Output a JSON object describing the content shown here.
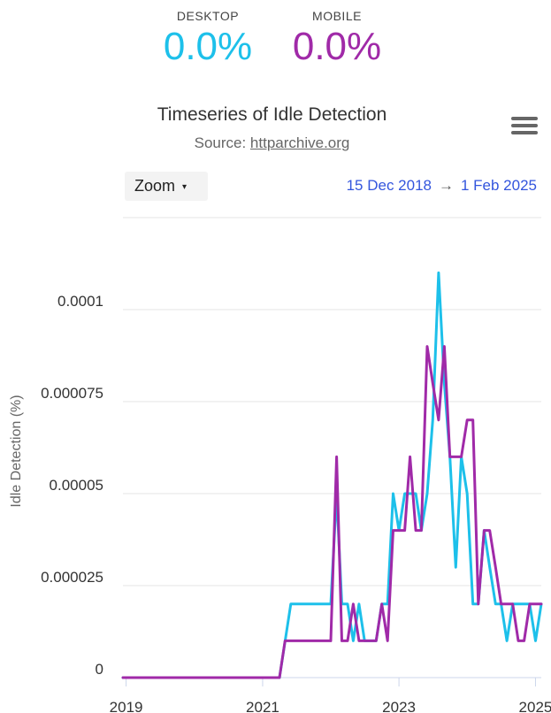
{
  "summary": {
    "desktop": {
      "label": "DESKTOP",
      "value": "0.0%",
      "color": "#1dc0ea"
    },
    "mobile": {
      "label": "MOBILE",
      "value": "0.0%",
      "color": "#a02aa8"
    }
  },
  "header": {
    "title": "Timeseries of Idle Detection",
    "source_prefix": "Source: ",
    "source_link": "httparchive.org",
    "menu_icon": "hamburger-menu-icon"
  },
  "controls": {
    "zoom_label": "Zoom",
    "zoom_caret": "▾",
    "range_start": "15 Dec 2018",
    "range_arrow": "→",
    "range_end": "1 Feb 2025"
  },
  "chart_data": {
    "type": "line",
    "title": "Timeseries of Idle Detection",
    "subtitle": "Source: httparchive.org",
    "ylabel": "Idle Detection (%)",
    "xlabel": "",
    "xlim": [
      "2018-12-15",
      "2025-02-01"
    ],
    "ylim": [
      0,
      0.0001
    ],
    "y_ticks": [
      0,
      2.5e-05,
      5e-05,
      7.5e-05,
      0.0001
    ],
    "y_tick_labels": [
      "0",
      "0.000025",
      "0.00005",
      "0.000075",
      "0.0001"
    ],
    "x_ticks": [
      "2019-01-01",
      "2021-01-01",
      "2023-01-01",
      "2025-01-01"
    ],
    "x_tick_labels": [
      "2019",
      "2021",
      "2023",
      "2025"
    ],
    "grid": true,
    "legend": "none",
    "series": [
      {
        "name": "Desktop",
        "color": "#1dc0ea",
        "points": [
          [
            "2018-12-15",
            0
          ],
          [
            "2021-04-01",
            0
          ],
          [
            "2021-06-01",
            2e-05
          ],
          [
            "2021-07-01",
            2e-05
          ],
          [
            "2022-01-01",
            2e-05
          ],
          [
            "2022-02-01",
            5e-05
          ],
          [
            "2022-03-01",
            2e-05
          ],
          [
            "2022-04-01",
            2e-05
          ],
          [
            "2022-05-01",
            1e-05
          ],
          [
            "2022-06-01",
            2e-05
          ],
          [
            "2022-07-01",
            1e-05
          ],
          [
            "2022-08-01",
            1e-05
          ],
          [
            "2022-09-01",
            1e-05
          ],
          [
            "2022-10-01",
            2e-05
          ],
          [
            "2022-11-01",
            2e-05
          ],
          [
            "2022-12-01",
            5e-05
          ],
          [
            "2023-01-01",
            4e-05
          ],
          [
            "2023-02-01",
            5e-05
          ],
          [
            "2023-03-01",
            5e-05
          ],
          [
            "2023-04-01",
            5e-05
          ],
          [
            "2023-05-01",
            4e-05
          ],
          [
            "2023-06-01",
            5e-05
          ],
          [
            "2023-07-01",
            7e-05
          ],
          [
            "2023-08-01",
            0.00011
          ],
          [
            "2023-09-01",
            8e-05
          ],
          [
            "2023-10-01",
            6e-05
          ],
          [
            "2023-11-01",
            3e-05
          ],
          [
            "2023-12-01",
            6e-05
          ],
          [
            "2024-01-01",
            5e-05
          ],
          [
            "2024-02-01",
            2e-05
          ],
          [
            "2024-03-01",
            2e-05
          ],
          [
            "2024-04-01",
            4e-05
          ],
          [
            "2024-05-01",
            3e-05
          ],
          [
            "2024-06-01",
            2e-05
          ],
          [
            "2024-07-01",
            2e-05
          ],
          [
            "2024-08-01",
            1e-05
          ],
          [
            "2024-09-01",
            2e-05
          ],
          [
            "2024-10-01",
            2e-05
          ],
          [
            "2024-11-01",
            2e-05
          ],
          [
            "2024-12-01",
            2e-05
          ],
          [
            "2025-01-01",
            1e-05
          ],
          [
            "2025-02-01",
            2e-05
          ]
        ]
      },
      {
        "name": "Mobile",
        "color": "#a02aa8",
        "points": [
          [
            "2018-12-15",
            0
          ],
          [
            "2021-04-01",
            0
          ],
          [
            "2021-05-01",
            1e-05
          ],
          [
            "2021-07-01",
            1e-05
          ],
          [
            "2022-01-01",
            1e-05
          ],
          [
            "2022-02-01",
            6e-05
          ],
          [
            "2022-03-01",
            1e-05
          ],
          [
            "2022-04-01",
            1e-05
          ],
          [
            "2022-05-01",
            2e-05
          ],
          [
            "2022-06-01",
            1e-05
          ],
          [
            "2022-07-01",
            1e-05
          ],
          [
            "2022-08-01",
            1e-05
          ],
          [
            "2022-09-01",
            1e-05
          ],
          [
            "2022-10-01",
            2e-05
          ],
          [
            "2022-11-01",
            1e-05
          ],
          [
            "2022-12-01",
            4e-05
          ],
          [
            "2023-01-01",
            4e-05
          ],
          [
            "2023-02-01",
            4e-05
          ],
          [
            "2023-03-01",
            6e-05
          ],
          [
            "2023-04-01",
            4e-05
          ],
          [
            "2023-05-01",
            4e-05
          ],
          [
            "2023-06-01",
            9e-05
          ],
          [
            "2023-07-01",
            8e-05
          ],
          [
            "2023-08-01",
            7e-05
          ],
          [
            "2023-09-01",
            9e-05
          ],
          [
            "2023-10-01",
            6e-05
          ],
          [
            "2023-11-01",
            6e-05
          ],
          [
            "2023-12-01",
            6e-05
          ],
          [
            "2024-01-01",
            7e-05
          ],
          [
            "2024-02-01",
            7e-05
          ],
          [
            "2024-03-01",
            2e-05
          ],
          [
            "2024-04-01",
            4e-05
          ],
          [
            "2024-05-01",
            4e-05
          ],
          [
            "2024-06-01",
            3e-05
          ],
          [
            "2024-07-01",
            2e-05
          ],
          [
            "2024-08-01",
            2e-05
          ],
          [
            "2024-09-01",
            2e-05
          ],
          [
            "2024-10-01",
            1e-05
          ],
          [
            "2024-11-01",
            1e-05
          ],
          [
            "2024-12-01",
            2e-05
          ],
          [
            "2025-02-01",
            2e-05
          ]
        ]
      }
    ]
  }
}
